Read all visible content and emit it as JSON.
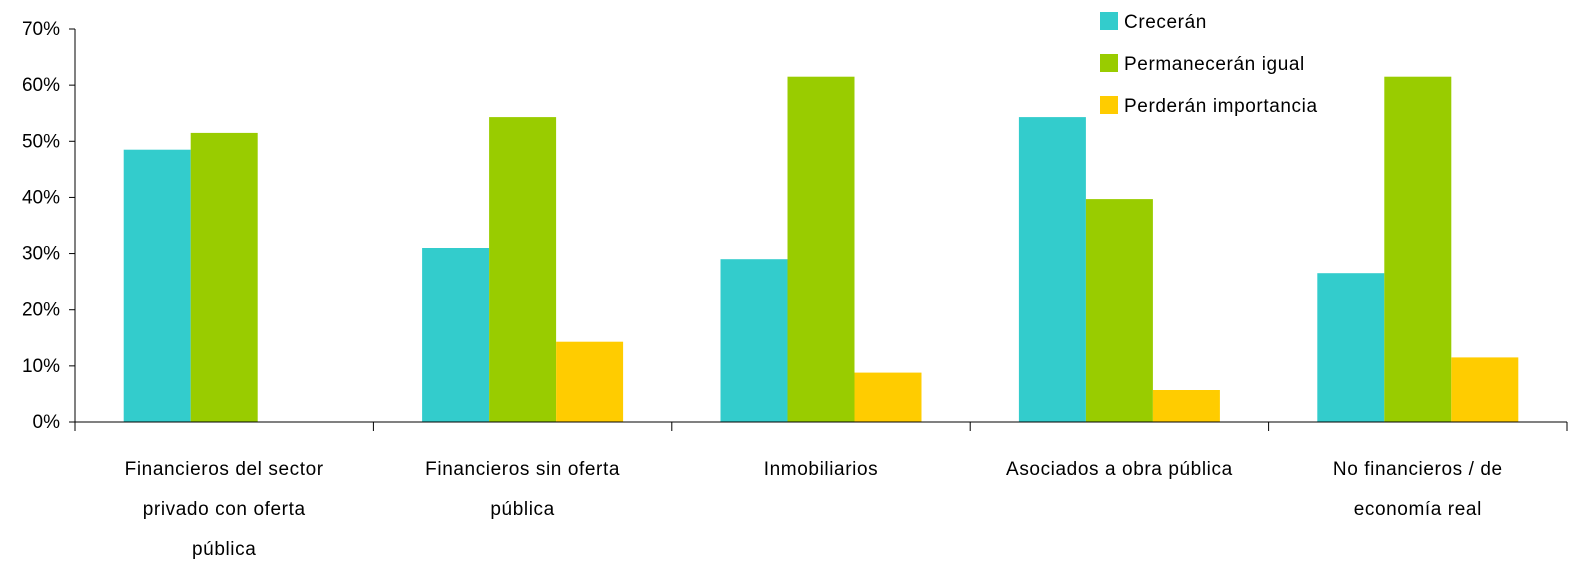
{
  "chart_data": {
    "type": "bar",
    "title": "",
    "xlabel": "",
    "ylabel": "",
    "ylim": [
      0,
      0.7
    ],
    "yticks": [
      0,
      0.1,
      0.2,
      0.3,
      0.4,
      0.5,
      0.6,
      0.7
    ],
    "ytick_labels": [
      "0%",
      "10%",
      "20%",
      "30%",
      "40%",
      "50%",
      "60%",
      "70%"
    ],
    "grid": false,
    "legend_position": "top-right",
    "categories": [
      "Financieros del sector privado con oferta pública",
      "Financieros sin oferta pública",
      "Inmobiliarios",
      "Asociados a obra pública",
      "No financieros / de economía real"
    ],
    "category_label_lines": [
      [
        "Financieros del sector",
        "privado con oferta",
        "pública"
      ],
      [
        "Financieros sin oferta",
        "pública"
      ],
      [
        "Inmobiliarios"
      ],
      [
        "Asociados a obra pública"
      ],
      [
        "No financieros / de",
        "economía real"
      ]
    ],
    "series": [
      {
        "name": "Crecerán",
        "color": "#33CCCC",
        "values": [
          0.485,
          0.31,
          0.29,
          0.543,
          0.265
        ]
      },
      {
        "name": "Permanecerán igual",
        "color": "#99CC00",
        "values": [
          0.515,
          0.543,
          0.615,
          0.397,
          0.615
        ]
      },
      {
        "name": "Perderán importancia",
        "color": "#FFCC00",
        "values": [
          0,
          0.143,
          0.088,
          0.057,
          0.115
        ]
      }
    ]
  }
}
